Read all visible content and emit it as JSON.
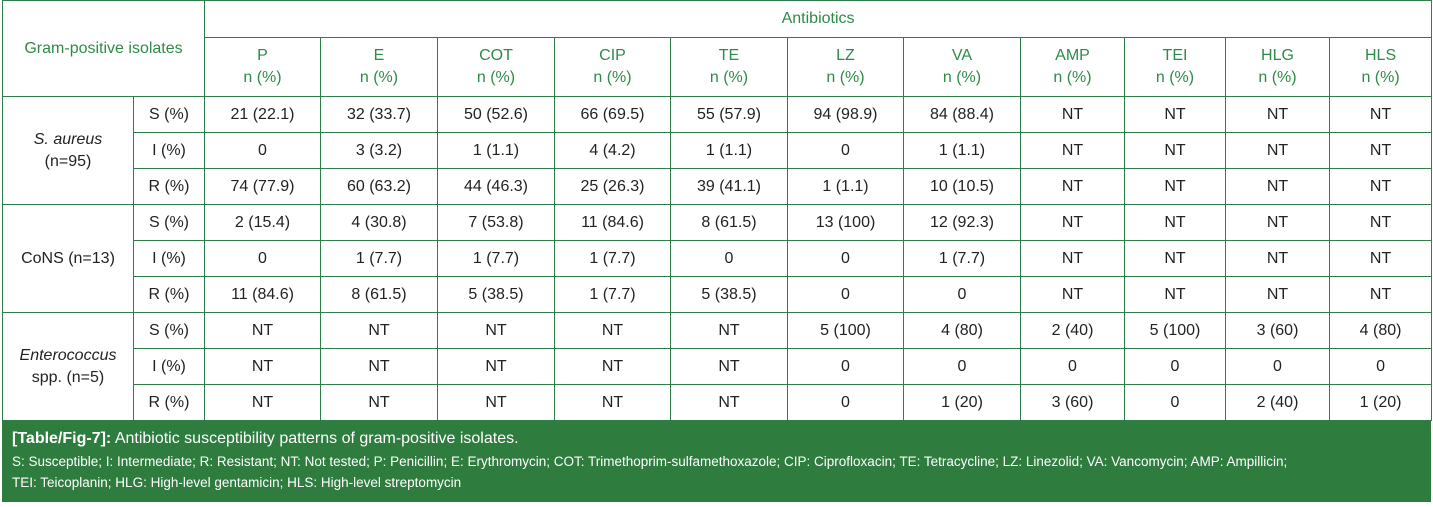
{
  "header": {
    "group_label": "Gram-positive isolates",
    "antibiotics_label": "Antibiotics",
    "sub_label": "n (%)",
    "columns": [
      "P",
      "E",
      "COT",
      "CIP",
      "TE",
      "LZ",
      "VA",
      "AMP",
      "TEI",
      "HLG",
      "HLS"
    ]
  },
  "groups": [
    {
      "name": "S. aureus",
      "count": "(n=95)",
      "rows": [
        {
          "label": "S (%)",
          "values": [
            "21 (22.1)",
            "32 (33.7)",
            "50 (52.6)",
            "66 (69.5)",
            "55 (57.9)",
            "94 (98.9)",
            "84 (88.4)",
            "NT",
            "NT",
            "NT",
            "NT"
          ]
        },
        {
          "label": "I (%)",
          "values": [
            "0",
            "3 (3.2)",
            "1 (1.1)",
            "4 (4.2)",
            "1 (1.1)",
            "0",
            "1 (1.1)",
            "NT",
            "NT",
            "NT",
            "NT"
          ]
        },
        {
          "label": "R (%)",
          "values": [
            "74 (77.9)",
            "60 (63.2)",
            "44 (46.3)",
            "25 (26.3)",
            "39 (41.1)",
            "1 (1.1)",
            "10 (10.5)",
            "NT",
            "NT",
            "NT",
            "NT"
          ]
        }
      ]
    },
    {
      "name": "CoNS (n=13)",
      "count": "",
      "rows": [
        {
          "label": "S (%)",
          "values": [
            "2 (15.4)",
            "4 (30.8)",
            "7 (53.8)",
            "11 (84.6)",
            "8 (61.5)",
            "13 (100)",
            "12 (92.3)",
            "NT",
            "NT",
            "NT",
            "NT"
          ]
        },
        {
          "label": "I (%)",
          "values": [
            "0",
            "1 (7.7)",
            "1 (7.7)",
            "1 (7.7)",
            "0",
            "0",
            "1 (7.7)",
            "NT",
            "NT",
            "NT",
            "NT"
          ]
        },
        {
          "label": "R (%)",
          "values": [
            "11 (84.6)",
            "8 (61.5)",
            "5 (38.5)",
            "1 (7.7)",
            "5 (38.5)",
            "0",
            "0",
            "NT",
            "NT",
            "NT",
            "NT"
          ]
        }
      ]
    },
    {
      "name": "Enterococcus",
      "count": "spp. (n=5)",
      "rows": [
        {
          "label": "S (%)",
          "values": [
            "NT",
            "NT",
            "NT",
            "NT",
            "NT",
            "5 (100)",
            "4 (80)",
            "2 (40)",
            "5 (100)",
            "3 (60)",
            "4 (80)"
          ]
        },
        {
          "label": "I (%)",
          "values": [
            "NT",
            "NT",
            "NT",
            "NT",
            "NT",
            "0",
            "0",
            "0",
            "0",
            "0",
            "0"
          ]
        },
        {
          "label": "R (%)",
          "values": [
            "NT",
            "NT",
            "NT",
            "NT",
            "NT",
            "0",
            "1 (20)",
            "3 (60)",
            "0",
            "2 (40)",
            "1 (20)"
          ]
        }
      ]
    }
  ],
  "caption": {
    "ref": "[Table/Fig-7]:",
    "title": "Antibiotic susceptibility patterns of gram-positive isolates.",
    "legend_line1": "S: Susceptible; I: Intermediate; R: Resistant; NT: Not tested; P: Penicillin; E: Erythromycin; COT: Trimethoprim-sulfamethoxazole; CIP: Ciprofloxacin; TE: Tetracycline; LZ: Linezolid; VA: Vancomycin; AMP: Ampillicin;",
    "legend_line2": "TEI: Teicoplanin; HLG: High-level gentamicin; HLS: High-level streptomycin"
  },
  "colors": {
    "accent_green": "#2e8b47",
    "caption_bg": "#2e7d3e",
    "border": "#2e7d4a"
  }
}
